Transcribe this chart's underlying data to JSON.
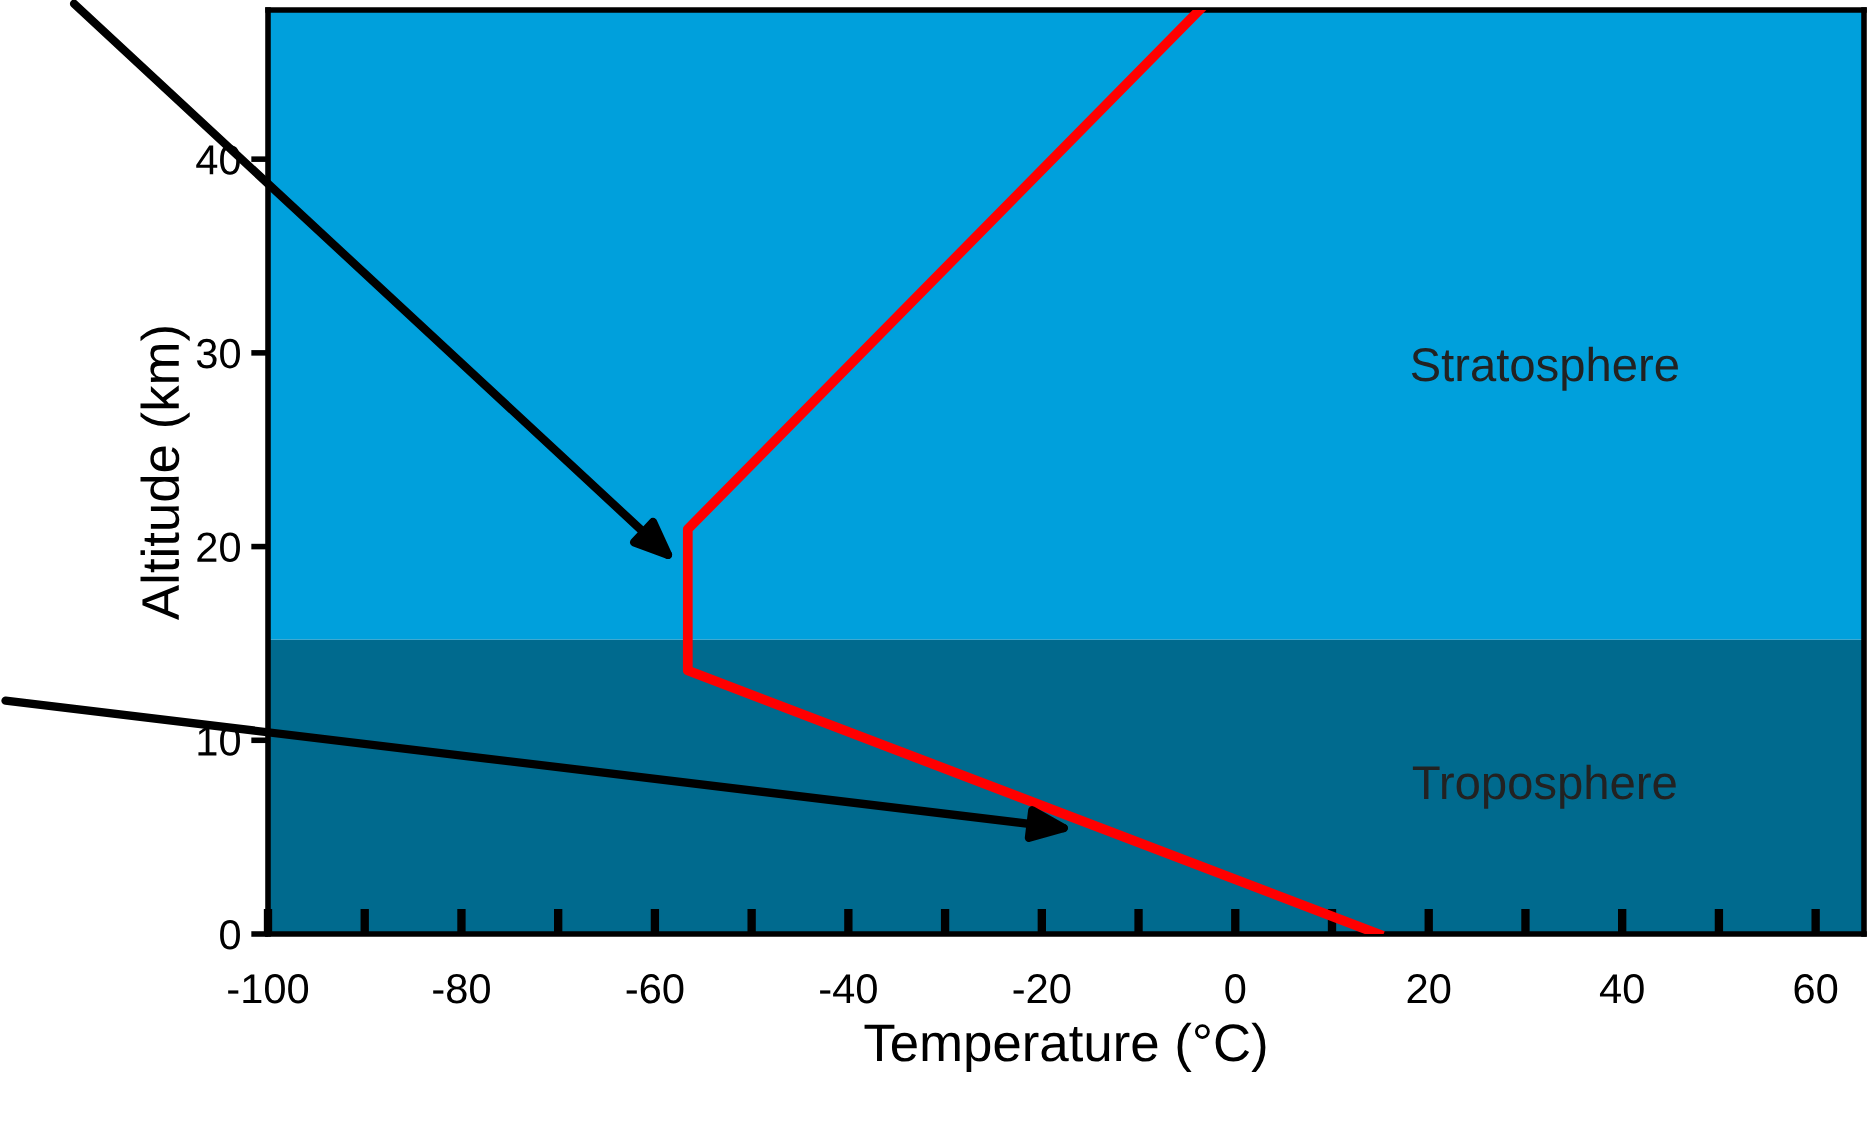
{
  "chart_data": {
    "type": "line",
    "xlabel": "Temperature (°C)",
    "ylabel": "Altitude (km)",
    "series": [
      {
        "color": "#ff0000",
        "x": [
          14.8,
          -56.6,
          -56.6,
          -3.7
        ],
        "values": [
          0,
          13.6,
          20.9,
          47.7
        ]
      }
    ],
    "xlim": [
      -100,
      65
    ],
    "ylim": [
      0,
      47.7
    ],
    "xticks": [
      -100,
      {
        "value": -90,
        "label": null
      },
      -80,
      {
        "value": -70,
        "label": null
      },
      -60,
      {
        "value": -50,
        "label": null
      },
      -40,
      {
        "value": -30,
        "label": null
      },
      -20,
      {
        "value": -10,
        "label": null
      },
      0,
      {
        "value": 10,
        "label": null
      },
      20,
      {
        "value": 30,
        "label": null
      },
      40,
      {
        "value": 50,
        "label": null
      },
      60
    ],
    "yticks": [
      0,
      10,
      20,
      30,
      40
    ],
    "bands": [
      {
        "axis": "y",
        "from": 0,
        "to": 15.2,
        "label": "Troposphere",
        "color": "#006a8e"
      },
      {
        "axis": "y",
        "from": 15.2,
        "to": 47.7,
        "label": "Stratosphere",
        "color": "#00a0dc"
      }
    ],
    "grid": false,
    "marker": "none",
    "line_style": "solid"
  }
}
